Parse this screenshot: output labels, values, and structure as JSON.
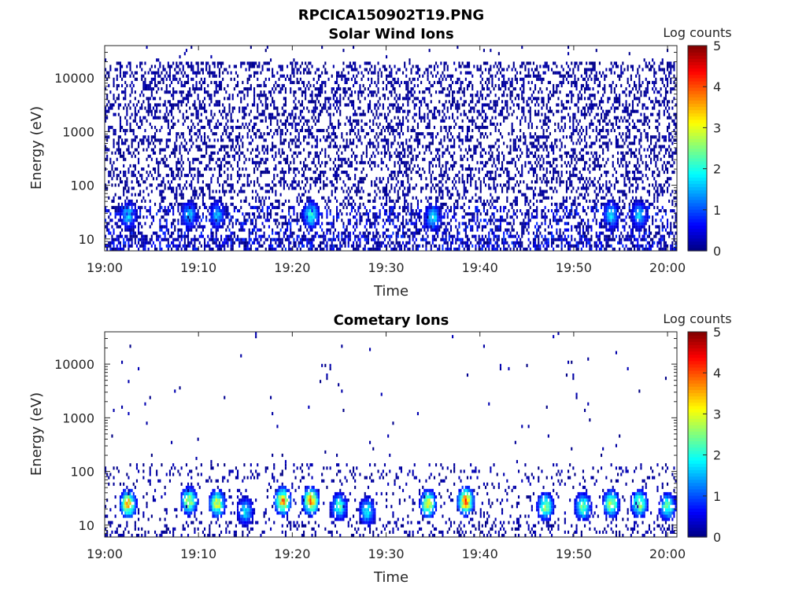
{
  "figure": {
    "title": "RPCICA150902T19.PNG"
  },
  "chart_data": [
    {
      "type": "heatmap",
      "title": "Solar Wind Ions",
      "xlabel": "Time",
      "ylabel": "Energy (eV)",
      "yscale": "log",
      "xlim": [
        "19:00",
        "20:01"
      ],
      "ylim": [
        6,
        40000
      ],
      "x_ticks": [
        "19:00",
        "19:10",
        "19:20",
        "19:30",
        "19:40",
        "19:50",
        "20:00"
      ],
      "y_ticks": [
        "10",
        "100",
        "1000",
        "10000"
      ],
      "colorbar": {
        "label": "Log counts",
        "range": [
          0,
          5
        ],
        "ticks": [
          "0",
          "1",
          "2",
          "3",
          "4",
          "5"
        ],
        "colormap": "jet"
      },
      "background_counts": {
        "energy_range": [
          80,
          20000
        ],
        "log_counts": 0
      },
      "peaks": [
        {
          "t": "19:02.5",
          "energy": 28,
          "log_counts": 1.8
        },
        {
          "t": "19:09",
          "energy": 28,
          "log_counts": 1.7
        },
        {
          "t": "19:12",
          "energy": 28,
          "log_counts": 1.6
        },
        {
          "t": "19:22",
          "energy": 28,
          "log_counts": 2.2
        },
        {
          "t": "19:35",
          "energy": 25,
          "log_counts": 1.9
        },
        {
          "t": "19:54",
          "energy": 28,
          "log_counts": 1.8
        },
        {
          "t": "19:57",
          "energy": 28,
          "log_counts": 1.7
        }
      ]
    },
    {
      "type": "heatmap",
      "title": "Cometary Ions",
      "xlabel": "Time",
      "ylabel": "Energy (eV)",
      "yscale": "log",
      "xlim": [
        "19:00",
        "20:01"
      ],
      "ylim": [
        6,
        40000
      ],
      "x_ticks": [
        "19:00",
        "19:10",
        "19:20",
        "19:30",
        "19:40",
        "19:50",
        "20:00"
      ],
      "y_ticks": [
        "10",
        "100",
        "1000",
        "10000"
      ],
      "colorbar": {
        "label": "Log counts",
        "range": [
          0,
          5
        ],
        "ticks": [
          "0",
          "1",
          "2",
          "3",
          "4",
          "5"
        ],
        "colormap": "jet"
      },
      "peaks": [
        {
          "t": "19:02.5",
          "energy": 25,
          "log_counts": 3.6
        },
        {
          "t": "19:09",
          "energy": 28,
          "log_counts": 3.1
        },
        {
          "t": "19:12",
          "energy": 25,
          "log_counts": 3.2
        },
        {
          "t": "19:15",
          "energy": 18,
          "log_counts": 1.9
        },
        {
          "t": "19:19",
          "energy": 28,
          "log_counts": 3.8
        },
        {
          "t": "19:22",
          "energy": 28,
          "log_counts": 3.9
        },
        {
          "t": "19:25",
          "energy": 22,
          "log_counts": 2.3
        },
        {
          "t": "19:28",
          "energy": 18,
          "log_counts": 2.1
        },
        {
          "t": "19:34.5",
          "energy": 25,
          "log_counts": 3.3
        },
        {
          "t": "19:38.5",
          "energy": 28,
          "log_counts": 4.1
        },
        {
          "t": "19:47",
          "energy": 22,
          "log_counts": 2.8
        },
        {
          "t": "19:51",
          "energy": 22,
          "log_counts": 2.6
        },
        {
          "t": "19:54",
          "energy": 25,
          "log_counts": 3.0
        },
        {
          "t": "19:57",
          "energy": 25,
          "log_counts": 2.9
        },
        {
          "t": "20:00",
          "energy": 22,
          "log_counts": 2.6
        }
      ]
    }
  ]
}
